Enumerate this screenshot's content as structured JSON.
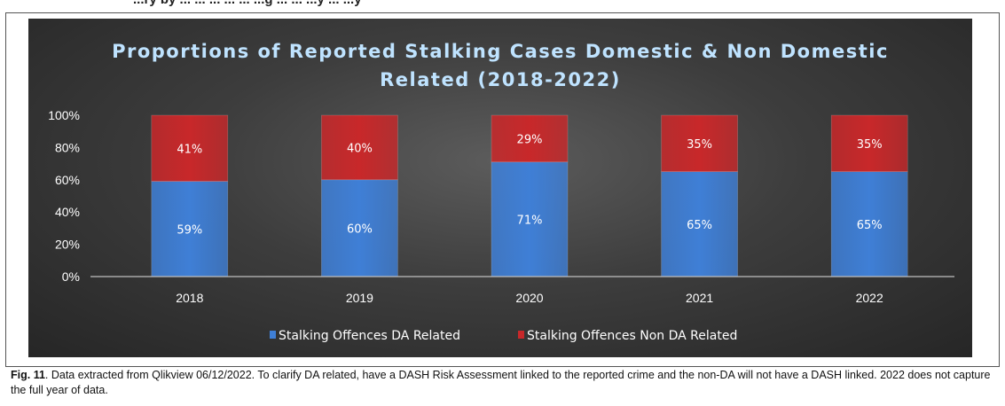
{
  "top_strip_text": "...ry by ... ... ... ... ... ...g ... ... ...y ... ...y",
  "chart_data": {
    "type": "bar",
    "stacked": true,
    "title_lines": [
      "Proportions of Reported Stalking Cases Domestic & Non Domestic",
      "Related (2018-2022)"
    ],
    "categories": [
      "2018",
      "2019",
      "2020",
      "2021",
      "2022"
    ],
    "series": [
      {
        "name": "Stalking Offences DA Related",
        "values": [
          59,
          60,
          71,
          65,
          65
        ],
        "labels": [
          "59%",
          "60%",
          "71%",
          "65%",
          "65%"
        ],
        "color": "#3f7fd6"
      },
      {
        "name": "Stalking Offences Non DA Related",
        "values": [
          41,
          40,
          29,
          35,
          35
        ],
        "labels": [
          "41%",
          "40%",
          "29%",
          "35%",
          "35%"
        ],
        "color": "#c8282a"
      }
    ],
    "y_ticks": [
      "0%",
      "20%",
      "40%",
      "60%",
      "80%",
      "100%"
    ],
    "ylim": [
      0,
      100
    ],
    "grid": false,
    "legend_position": "bottom"
  },
  "caption": {
    "fig_label": "Fig. 11",
    "text": ". Data extracted from Qlikview 06/12/2022. To clarify DA related, have a DASH Risk Assessment linked to the reported crime and the non-DA will not have a DASH linked. 2022 does not capture the full year of data."
  }
}
